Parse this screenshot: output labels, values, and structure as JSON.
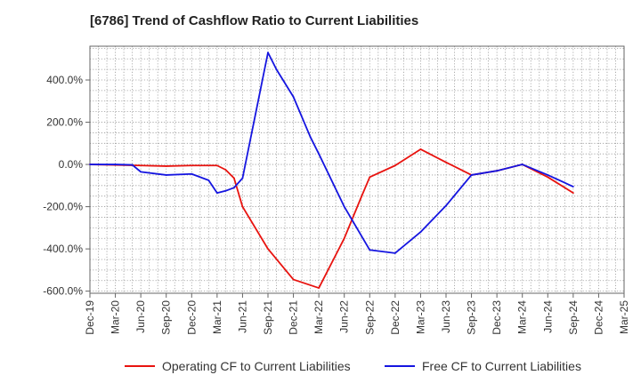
{
  "chart_data": {
    "type": "line",
    "title": "[6786]  Trend of Cashflow Ratio to Current Liabilities",
    "xlabel": "",
    "ylabel": "",
    "x_tick_labels": [
      "Dec-19",
      "Mar-20",
      "Jun-20",
      "Sep-20",
      "Dec-20",
      "Mar-21",
      "Jun-21",
      "Sep-21",
      "Dec-21",
      "Mar-22",
      "Jun-22",
      "Sep-22",
      "Dec-22",
      "Mar-23",
      "Jun-23",
      "Sep-23",
      "Dec-23",
      "Mar-24",
      "Jun-24",
      "Sep-24",
      "Dec-24",
      "Mar-25"
    ],
    "y_ticks": [
      -600,
      -400,
      -200,
      0,
      200,
      400
    ],
    "y_tick_labels": [
      "-600.0%",
      "-400.0%",
      "-200.0%",
      "0.0%",
      "200.0%",
      "400.0%"
    ],
    "ylim": [
      -610,
      560
    ],
    "grid": true,
    "legend_position": "bottom",
    "series": [
      {
        "name": "Operating CF to Current Liabilities",
        "color": "#e8130f",
        "points": [
          [
            "Dec-19",
            0
          ],
          [
            "Jun-20",
            -5
          ],
          [
            "Sep-20",
            -8
          ],
          [
            "Dec-20",
            -5
          ],
          [
            "Mar-21",
            -5
          ],
          [
            "Apr-21",
            -25
          ],
          [
            "May-21",
            -65
          ],
          [
            "Jun-21",
            -200
          ],
          [
            "Sep-21",
            -400
          ],
          [
            "Dec-21",
            -545
          ],
          [
            "Mar-22",
            -585
          ],
          [
            "Jun-22",
            -350
          ],
          [
            "Aug-22",
            -155
          ],
          [
            "Sep-22",
            -60
          ],
          [
            "Dec-22",
            -5
          ],
          [
            "Mar-23",
            72
          ],
          [
            "Jun-23",
            10
          ],
          [
            "Sep-23",
            -50
          ],
          [
            "Dec-23",
            -30
          ],
          [
            "Mar-24",
            0
          ],
          [
            "Jun-24",
            -60
          ],
          [
            "Sep-24",
            -135
          ]
        ]
      },
      {
        "name": "Free CF to Current Liabilities",
        "color": "#1515e0",
        "points": [
          [
            "Dec-19",
            0
          ],
          [
            "Mar-20",
            0
          ],
          [
            "May-20",
            -2
          ],
          [
            "Jun-20",
            -35
          ],
          [
            "Sep-20",
            -50
          ],
          [
            "Dec-20",
            -45
          ],
          [
            "Feb-21",
            -75
          ],
          [
            "Mar-21",
            -135
          ],
          [
            "Apr-21",
            -125
          ],
          [
            "May-21",
            -110
          ],
          [
            "Jun-21",
            -65
          ],
          [
            "Sep-21",
            530
          ],
          [
            "Oct-21",
            450
          ],
          [
            "Dec-21",
            320
          ],
          [
            "Feb-22",
            130
          ],
          [
            "Mar-22",
            50
          ],
          [
            "Jun-22",
            -200
          ],
          [
            "Sep-22",
            -405
          ],
          [
            "Dec-22",
            -420
          ],
          [
            "Mar-23",
            -320
          ],
          [
            "Jun-23",
            -195
          ],
          [
            "Sep-23",
            -50
          ],
          [
            "Dec-23",
            -30
          ],
          [
            "Mar-24",
            0
          ],
          [
            "Jun-24",
            -50
          ],
          [
            "Sep-24",
            -105
          ]
        ]
      }
    ]
  }
}
